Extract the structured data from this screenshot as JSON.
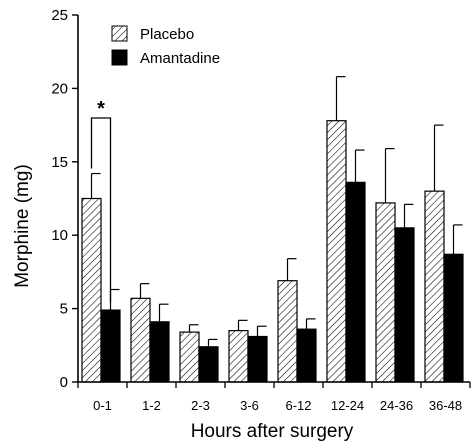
{
  "chart_data": {
    "type": "bar",
    "title": "",
    "xlabel": "Hours after surgery",
    "ylabel": "Morphine (mg)",
    "ylim": [
      0,
      25
    ],
    "yticks": [
      0,
      5,
      10,
      15,
      20,
      25
    ],
    "categories": [
      "0-1",
      "1-2",
      "2-3",
      "3-6",
      "6-12",
      "12-24",
      "24-36",
      "36-48"
    ],
    "series": [
      {
        "name": "Placebo",
        "pattern": "hatched",
        "values": [
          12.5,
          5.7,
          3.4,
          3.5,
          6.9,
          17.8,
          12.2,
          13.0
        ],
        "errors": [
          1.7,
          1.0,
          0.5,
          0.7,
          1.5,
          3.0,
          3.7,
          4.5
        ]
      },
      {
        "name": "Amantadine",
        "pattern": "solid",
        "values": [
          4.9,
          4.1,
          2.4,
          3.1,
          3.6,
          13.6,
          10.5,
          8.7
        ],
        "errors": [
          1.4,
          1.2,
          0.5,
          0.7,
          0.7,
          2.2,
          1.6,
          2.0
        ]
      }
    ],
    "legend_position": "top-left",
    "grid": false,
    "annotations": [
      {
        "text": "*",
        "category": "0-1",
        "between_series": [
          "Placebo",
          "Amantadine"
        ]
      }
    ],
    "colors": {
      "bar_fill_solid": "#000000",
      "hatch": "#000000",
      "background": "#ffffff"
    }
  }
}
